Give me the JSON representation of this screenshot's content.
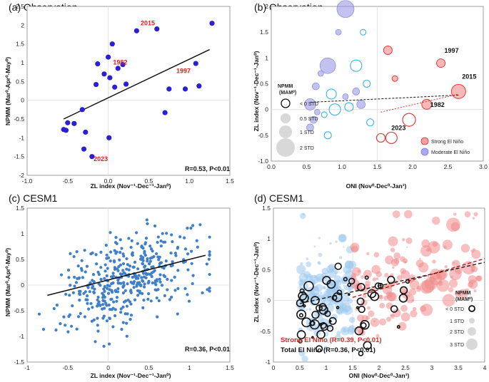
{
  "chart_data": [
    {
      "id": "a",
      "type": "scatter",
      "title": "(a) Observation",
      "xlabel": "ZL index (Nov⁻¹-Dec⁻¹-Jan⁰)",
      "ylabel": "NPMM (Mar⁰-Apr⁰-May⁰)",
      "xlim": [
        -1.0,
        1.5
      ],
      "ylim": [
        -2.0,
        2.5
      ],
      "xticks": [
        "-1.0",
        "-0.5",
        "0.0",
        "0.5",
        "1.0",
        "1.5"
      ],
      "yticks": [
        "-2",
        "-1.5",
        "-1",
        "-0.5",
        "0",
        "0.5",
        "1",
        "1.5",
        "2",
        "2.5"
      ],
      "x": [
        -0.55,
        -0.52,
        -0.5,
        -0.42,
        -0.32,
        -0.3,
        -0.28,
        -0.2,
        -0.15,
        -0.13,
        -0.05,
        0.0,
        0.02,
        0.05,
        0.08,
        0.12,
        0.18,
        0.22,
        0.35,
        0.6,
        0.7,
        0.75,
        0.95,
        1.08,
        1.12,
        1.28,
        0.01
      ],
      "y": [
        -0.78,
        -0.8,
        -0.6,
        -0.62,
        -0.25,
        -1.3,
        -0.85,
        -1.5,
        0.42,
        0.97,
        0.7,
        1.15,
        0.6,
        1.5,
        0.35,
        0.85,
        0.95,
        0.43,
        1.85,
        1.9,
        -0.33,
        0.3,
        0.3,
        0.98,
        0.38,
        2.05,
        -1.0
      ],
      "annotations": [
        {
          "text": "2015",
          "x": 0.4,
          "y": 2.0
        },
        {
          "text": "1982",
          "x": 0.06,
          "y": 0.95
        },
        {
          "text": "1997",
          "x": 0.84,
          "y": 0.72
        },
        {
          "text": "2023",
          "x": -0.18,
          "y": -1.62
        }
      ],
      "fit": {
        "x0": -0.55,
        "y0": -0.5,
        "x1": 1.25,
        "y1": 1.35
      },
      "stat": "R=0.53, P<0.01",
      "color": "#2b1fd6"
    },
    {
      "id": "b",
      "type": "scatter",
      "title": "(b) Observation",
      "xlabel": "ONI (Nov⁰-Dec⁰-Jan¹)",
      "ylabel": "ZL index (Nov⁻¹-Dec⁻¹-Jan⁰)",
      "xlim": [
        0.0,
        3.0
      ],
      "ylim": [
        -1.0,
        2.0
      ],
      "xticks": [
        "0.0",
        "0.5",
        "1.0",
        "1.5",
        "2.0",
        "2.5",
        "3.0"
      ],
      "yticks": [
        "-1.0",
        "-0.5",
        "0",
        "0.5",
        "1",
        "1.5",
        "2"
      ],
      "moderate": [
        {
          "x": 0.55,
          "y": 0.1,
          "r": 8,
          "neg": false
        },
        {
          "x": 0.6,
          "y": -0.2,
          "r": 5,
          "neg": false
        },
        {
          "x": 0.63,
          "y": 0.45,
          "r": 5,
          "neg": false
        },
        {
          "x": 0.65,
          "y": -0.05,
          "r": 4,
          "neg": false
        },
        {
          "x": 0.7,
          "y": 0.7,
          "r": 4,
          "neg": false
        },
        {
          "x": 0.8,
          "y": 0.85,
          "r": 11,
          "neg": false
        },
        {
          "x": 0.85,
          "y": 0.3,
          "r": 7,
          "neg": true
        },
        {
          "x": 0.9,
          "y": 0.0,
          "r": 8,
          "neg": true
        },
        {
          "x": 0.95,
          "y": 1.5,
          "r": 4,
          "neg": false
        },
        {
          "x": 1.05,
          "y": 1.95,
          "r": 12,
          "neg": false
        },
        {
          "x": 0.75,
          "y": -0.1,
          "r": 4,
          "neg": true
        },
        {
          "x": 0.8,
          "y": -0.5,
          "r": 5,
          "neg": true
        },
        {
          "x": 1.1,
          "y": 0.05,
          "r": 6,
          "neg": true
        },
        {
          "x": 1.2,
          "y": 0.85,
          "r": 8,
          "neg": true
        },
        {
          "x": 1.2,
          "y": 0.35,
          "r": 5,
          "neg": false
        },
        {
          "x": 1.27,
          "y": 0.1,
          "r": 6,
          "neg": false
        },
        {
          "x": 1.3,
          "y": 1.5,
          "r": 4,
          "neg": true
        },
        {
          "x": 1.35,
          "y": 0.5,
          "r": 5,
          "neg": true
        },
        {
          "x": 1.4,
          "y": -0.25,
          "r": 5,
          "neg": true
        },
        {
          "x": 1.05,
          "y": 0.25,
          "r": 4,
          "neg": false
        },
        {
          "x": 0.55,
          "y": -0.35,
          "r": 5,
          "neg": false
        }
      ],
      "strong": [
        {
          "x": 1.55,
          "y": -0.55,
          "r": 6,
          "neg": true
        },
        {
          "x": 1.65,
          "y": 1.15,
          "r": 6,
          "neg": false
        },
        {
          "x": 1.7,
          "y": -0.55,
          "r": 8,
          "neg": true
        },
        {
          "x": 1.75,
          "y": 0.6,
          "r": 4,
          "neg": false
        },
        {
          "x": 1.95,
          "y": -0.2,
          "r": 9,
          "neg": true
        },
        {
          "x": 2.2,
          "y": 0.1,
          "r": 7,
          "neg": false
        },
        {
          "x": 2.4,
          "y": 0.9,
          "r": 6,
          "neg": false
        },
        {
          "x": 2.65,
          "y": 0.35,
          "r": 10,
          "neg": false
        }
      ],
      "annotations": [
        {
          "text": "1997",
          "x": 2.45,
          "y": 1.1
        },
        {
          "text": "2015",
          "x": 2.7,
          "y": 0.6
        },
        {
          "text": "1982",
          "x": 2.25,
          "y": 0.05
        },
        {
          "text": "2023",
          "x": 1.7,
          "y": -0.4
        }
      ],
      "fit_total": {
        "x0": 0.55,
        "y0": 0.14,
        "x1": 2.65,
        "y1": 0.28
      },
      "fit_strong": {
        "x0": 1.55,
        "y0": -0.05,
        "x1": 2.65,
        "y1": 0.3
      },
      "legend_size_title": "NPMM",
      "legend_size_subtitle": "(MAM⁰)",
      "legend_sizes": [
        "< 0 STD",
        "0.5 STD",
        "1 STD",
        "2 STD"
      ],
      "legend_groups": [
        "Strong El Niño",
        "Moderate El Niño"
      ],
      "colors": {
        "strong": "#e83a3a",
        "moderate": "#9a9ae8",
        "negative_moderate": "#38b4ef"
      }
    },
    {
      "id": "c",
      "type": "scatter",
      "title": "(c) CESM1",
      "xlabel": "ZL index (Nov⁻¹-Dec⁻¹-Jan⁰)",
      "ylabel": "NPMM (Mar⁰-Apr⁰-May⁰)",
      "xlim": [
        -1.0,
        1.5
      ],
      "ylim": [
        -1.5,
        1.5
      ],
      "xticks": [
        "-1",
        "-0.5",
        "0",
        "0.5",
        "1",
        "1.5"
      ],
      "yticks": [
        "-1.5",
        "-1",
        "-0.5",
        "0",
        "0.5",
        "1",
        "1.5"
      ],
      "n_points": 420,
      "fit": {
        "x0": -0.75,
        "y0": -0.2,
        "x1": 1.2,
        "y1": 0.58
      },
      "stat": "R=0.36, P<0.01",
      "color": "#3e7fc9"
    },
    {
      "id": "d",
      "type": "scatter",
      "title": "(d) CESM1",
      "xlabel": "ONI (Nov⁰-Dec⁰-Jan¹)",
      "ylabel": "ZL index (Nov⁻¹-Dec⁻¹-Jan⁰)",
      "xlim": [
        0,
        4
      ],
      "ylim": [
        -1,
        1.5
      ],
      "xticks": [
        "0",
        "0.5",
        "1",
        "1.5",
        "2",
        "2.5",
        "3",
        "3.5",
        "4"
      ],
      "yticks": [
        "-1",
        "-0.5",
        "0",
        "0.5",
        "1",
        "1.5"
      ],
      "n_moderate": 160,
      "n_strong": 150,
      "n_negative": 60,
      "fit_total": {
        "x0": 0.5,
        "y0": -0.05,
        "x1": 4.0,
        "y1": 0.62
      },
      "fit_strong": {
        "x0": 1.5,
        "y0": 0.05,
        "x1": 4.0,
        "y1": 0.68
      },
      "stat_strong": "Strong El Niño (R=0.39, P<0.01)",
      "stat_total": "Total El Niño (R=0.36, P<0.01)",
      "legend_size_title": "NPMM",
      "legend_size_subtitle": "(MAM⁰)",
      "legend_sizes": [
        "< 0 STD",
        "1 STD",
        "2 STD",
        "3 STD"
      ],
      "colors": {
        "strong": "#f08a8a",
        "moderate": "#9cc8ef"
      }
    }
  ]
}
